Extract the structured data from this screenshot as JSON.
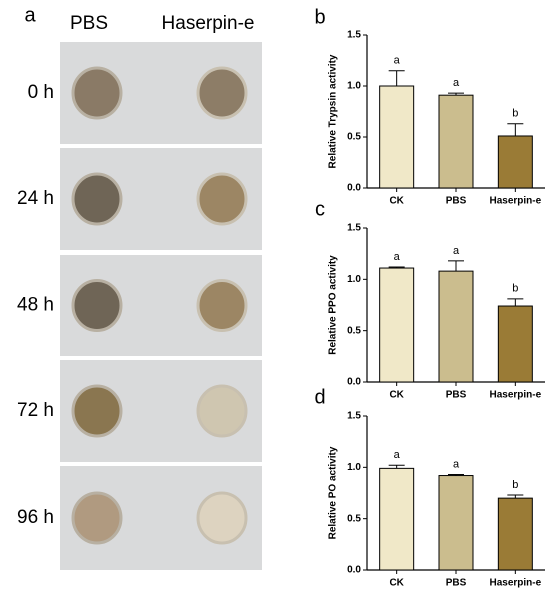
{
  "panel_a": {
    "label": "a",
    "columns": [
      "PBS",
      "Haserpin-e"
    ],
    "rows": [
      "0 h",
      "24 h",
      "48 h",
      "72 h",
      "96 h"
    ]
  },
  "chart_data": [
    {
      "type": "bar",
      "panel": "b",
      "ylabel": "Relative Trypsin activity",
      "categories": [
        "CK",
        "PBS",
        "Haserpin-e"
      ],
      "values": [
        1.0,
        0.91,
        0.51
      ],
      "errors": [
        0.15,
        0.02,
        0.12
      ],
      "sig_labels": [
        "a",
        "a",
        "b"
      ],
      "colors": [
        "#f0e8c8",
        "#cbbd8e",
        "#9a7b36"
      ],
      "ylim": [
        0,
        1.5
      ],
      "yticks": [
        {
          "value": 0,
          "label": "0.0"
        },
        0.5,
        {
          "value": 1,
          "label": "1.0"
        },
        1.5
      ]
    },
    {
      "type": "bar",
      "panel": "c",
      "ylabel": "Relative PPO activity",
      "categories": [
        "CK",
        "PBS",
        "Haserpin-e"
      ],
      "values": [
        1.11,
        1.08,
        0.74
      ],
      "errors": [
        0.01,
        0.1,
        0.07
      ],
      "sig_labels": [
        "a",
        "a",
        "b"
      ],
      "colors": [
        "#f0e8c8",
        "#cbbd8e",
        "#9a7b36"
      ],
      "ylim": [
        0,
        1.5
      ],
      "yticks": [
        {
          "value": 0,
          "label": "0.0"
        },
        0.5,
        {
          "value": 1,
          "label": "1.0"
        },
        1.5
      ]
    },
    {
      "type": "bar",
      "panel": "d",
      "ylabel": "Relative PO activity",
      "categories": [
        "CK",
        "PBS",
        "Haserpin-e"
      ],
      "values": [
        0.99,
        0.92,
        0.7
      ],
      "errors": [
        0.03,
        0.01,
        0.03
      ],
      "sig_labels": [
        "a",
        "a",
        "b"
      ],
      "colors": [
        "#f0e8c8",
        "#cbbd8e",
        "#9a7b36"
      ],
      "ylim": [
        0,
        1.5
      ],
      "yticks": [
        {
          "value": 0,
          "label": "0.0"
        },
        0.5,
        {
          "value": 1,
          "label": "1.0"
        },
        1.5
      ]
    }
  ]
}
